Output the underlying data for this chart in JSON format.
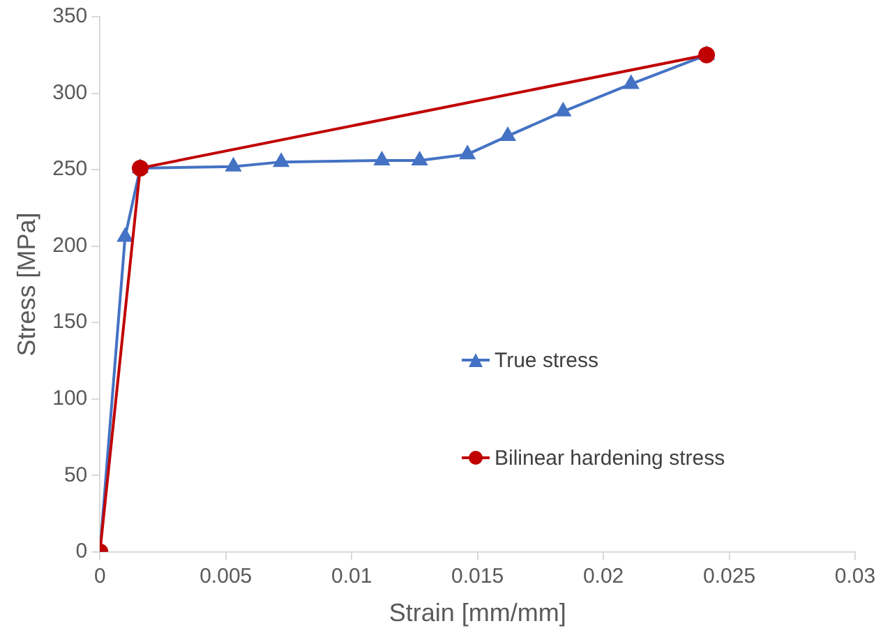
{
  "chart_data": {
    "type": "line",
    "xlabel": "Strain [mm/mm]",
    "ylabel": "Stress [MPa]",
    "xlim": [
      0,
      0.03
    ],
    "xticks": [
      0,
      0.005,
      0.01,
      0.015,
      0.02,
      0.025,
      0.03
    ],
    "ylim": [
      0,
      350
    ],
    "yticks": [
      0,
      50,
      100,
      150,
      200,
      250,
      300,
      350
    ],
    "grid": false,
    "legend": "right",
    "series": [
      {
        "name": "True stress",
        "color": "#4472c4",
        "marker": "triangle",
        "x": [
          0,
          0.001,
          0.0016,
          0.0053,
          0.0072,
          0.0112,
          0.0127,
          0.0146,
          0.0162,
          0.0184,
          0.0211,
          0.0241
        ],
        "values": [
          0,
          206,
          251,
          252,
          255,
          256,
          256,
          260,
          272,
          288,
          306,
          325
        ]
      },
      {
        "name": "Bilinear hardening stress",
        "color": "#c00000",
        "marker": "circle",
        "x": [
          0,
          0.0016,
          0.0241
        ],
        "values": [
          0,
          251,
          325
        ]
      }
    ]
  }
}
